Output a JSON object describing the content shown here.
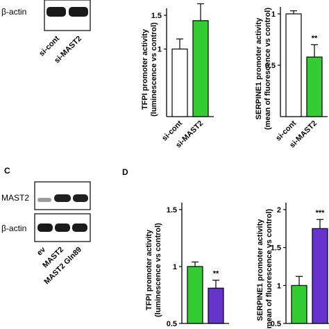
{
  "panels": {
    "a_blot": {
      "row_labels": [
        "β-actin"
      ],
      "lane_labels": [
        "si-cont",
        "si-MAST2"
      ]
    },
    "c_blot": {
      "letter": "C",
      "row_labels": [
        "MAST2",
        "β-actin"
      ],
      "lane_labels": [
        "ev",
        "MAST2",
        "MAST2 Gln89"
      ]
    },
    "d_letter": "D"
  },
  "colors": {
    "control_fill": "#ffffff",
    "mast2_fill": "#33cc33",
    "gln89_fill": "#6633cc",
    "outline": "#000000"
  },
  "chart_data": [
    {
      "type": "bar",
      "categories": [
        "si-cont",
        "si-MAST2"
      ],
      "values": [
        1.0,
        1.42
      ],
      "errors": [
        0.15,
        0.25
      ],
      "significance": [
        "",
        ""
      ],
      "ylabel": "TFPI promoter activity (luminescence vs control)",
      "ylim": [
        0,
        1.5
      ],
      "yticks": [
        "1",
        "1.5"
      ],
      "ytick_values": [
        1,
        1.5
      ]
    },
    {
      "type": "bar",
      "categories": [
        "si-cont",
        "si-MAST2"
      ],
      "values": [
        1.0,
        0.58
      ],
      "errors": [
        0.03,
        0.12
      ],
      "significance": [
        "",
        "**"
      ],
      "ylabel": "SERPINE1 promoter activity (mean of fluorescence vs control)",
      "ylim": [
        0,
        1.0
      ],
      "yticks": [
        "0.5",
        "1"
      ],
      "ytick_values": [
        0.5,
        1
      ]
    },
    {
      "type": "bar",
      "categories": [
        "",
        ""
      ],
      "values": [
        1.0,
        0.81
      ],
      "errors": [
        0.04,
        0.07
      ],
      "significance": [
        "",
        "**"
      ],
      "ylabel": "TFPI promoter activity (luminescence vs control)",
      "ylim": [
        0.5,
        1.5
      ],
      "yticks": [
        "0.5",
        "1",
        "1.5"
      ],
      "ytick_values": [
        0.5,
        1,
        1.5
      ]
    },
    {
      "type": "bar",
      "categories": [
        "",
        ""
      ],
      "values": [
        1.0,
        1.75
      ],
      "errors": [
        0.12,
        0.12
      ],
      "significance": [
        "",
        "***"
      ],
      "ylabel": "SERPINE1 promoter activity (mean of fluorescence vs control)",
      "ylim": [
        0.5,
        2
      ],
      "yticks": [
        "0.5",
        "1",
        "1.5",
        "2"
      ],
      "ytick_values": [
        0.5,
        1,
        1.5,
        2
      ]
    }
  ]
}
